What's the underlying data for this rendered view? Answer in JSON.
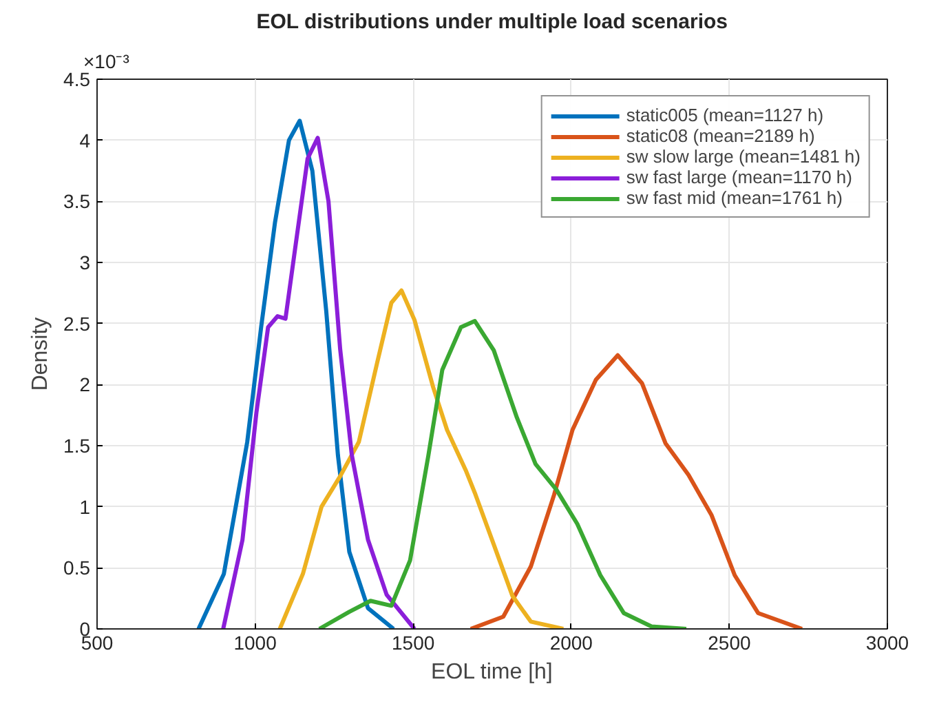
{
  "chart_data": {
    "type": "line",
    "title": "EOL distributions under multiple load scenarios",
    "xlabel": "EOL time [h]",
    "ylabel": "Density",
    "annotations": [
      "×10⁻³"
    ],
    "xlim": [
      500,
      3000
    ],
    "xticks": [
      500,
      1000,
      1500,
      2000,
      2500,
      3000
    ],
    "ylim": [
      0,
      4.5
    ],
    "yticks": [
      0,
      0.5,
      1,
      1.5,
      2,
      2.5,
      3,
      3.5,
      4,
      4.5
    ],
    "grid": true,
    "legend": "top right",
    "marker": "none",
    "line_style": "solid",
    "series": [
      {
        "name": "static005 (mean=1127 h)",
        "color": "#0072bd",
        "x": [
          821,
          901,
          975,
          1019,
          1063,
          1107,
          1141,
          1181,
          1225,
          1262,
          1298,
          1357,
          1438
        ],
        "values": [
          0,
          0.45,
          1.53,
          2.47,
          3.33,
          4.0,
          4.16,
          3.75,
          2.6,
          1.42,
          0.63,
          0.17,
          0
        ]
      },
      {
        "name": "static08 (mean=2189 h)",
        "color": "#d95319",
        "x": [
          1682,
          1785,
          1872,
          1946,
          2004,
          2078,
          2147,
          2224,
          2298,
          2371,
          2444,
          2517,
          2591,
          2730
        ],
        "values": [
          0,
          0.1,
          0.51,
          1.1,
          1.63,
          2.04,
          2.24,
          2.01,
          1.52,
          1.26,
          0.93,
          0.44,
          0.13,
          0
        ]
      },
      {
        "name": "sw slow large (mean=1481 h)",
        "color": "#edb120",
        "x": [
          1078,
          1151,
          1210,
          1269,
          1328,
          1387,
          1431,
          1463,
          1504,
          1563,
          1607,
          1666,
          1697,
          1755,
          1814,
          1872,
          1975
        ],
        "values": [
          0,
          0.45,
          1.0,
          1.25,
          1.53,
          2.19,
          2.67,
          2.77,
          2.53,
          1.98,
          1.63,
          1.3,
          1.1,
          0.69,
          0.27,
          0.06,
          0
        ]
      },
      {
        "name": "sw fast large (mean=1170 h)",
        "color": "#8b1ed9",
        "x": [
          899,
          960,
          1004,
          1041,
          1071,
          1096,
          1129,
          1166,
          1198,
          1232,
          1269,
          1306,
          1357,
          1416,
          1504
        ],
        "values": [
          0,
          0.73,
          1.77,
          2.47,
          2.56,
          2.54,
          3.16,
          3.85,
          4.02,
          3.5,
          2.29,
          1.42,
          0.73,
          0.28,
          0
        ]
      },
      {
        "name": "sw fast mid (mean=1761 h)",
        "color": "#3aa832",
        "x": [
          1203,
          1298,
          1365,
          1431,
          1490,
          1548,
          1592,
          1651,
          1695,
          1755,
          1828,
          1887,
          1953,
          2019,
          2092,
          2166,
          2254,
          2364
        ],
        "values": [
          0,
          0.14,
          0.23,
          0.19,
          0.56,
          1.42,
          2.12,
          2.47,
          2.52,
          2.28,
          1.73,
          1.35,
          1.14,
          0.86,
          0.44,
          0.13,
          0.02,
          0
        ]
      }
    ]
  }
}
